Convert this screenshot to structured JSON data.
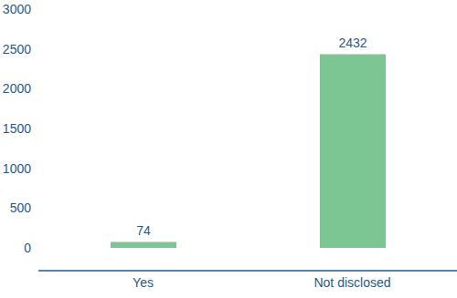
{
  "chart_data": {
    "type": "bar",
    "categories": [
      "Yes",
      "Not disclosed"
    ],
    "values": [
      74,
      2432
    ],
    "color": "#7cc693",
    "ylim": [
      0,
      3000
    ],
    "yticks": [
      0,
      500,
      1000,
      1500,
      2000,
      2500,
      3000
    ],
    "grid": false,
    "data_labels": true
  }
}
